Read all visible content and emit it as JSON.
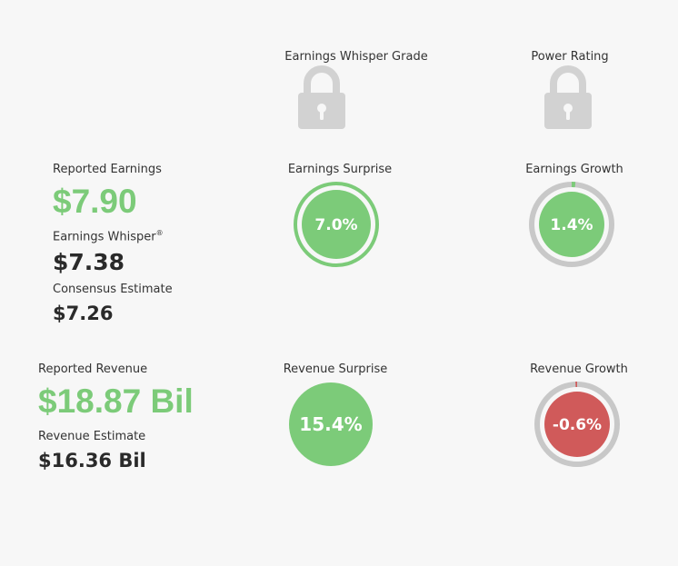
{
  "grades": {
    "whisper_grade_label": "Earnings Whisper Grade",
    "power_rating_label": "Power Rating",
    "lock_icon": "lock-icon"
  },
  "earnings": {
    "reported_label": "Reported Earnings",
    "reported_value": "$7.90",
    "whisper_label": "Earnings Whisper",
    "whisper_reg": "®",
    "whisper_value": "$7.38",
    "consensus_label": "Consensus Estimate",
    "consensus_value": "$7.26",
    "surprise_label": "Earnings Surprise",
    "surprise_value": "7.0%",
    "growth_label": "Earnings Growth",
    "growth_value": "1.4%"
  },
  "revenue": {
    "reported_label": "Reported Revenue",
    "reported_value": "$18.87 Bil",
    "estimate_label": "Revenue Estimate",
    "estimate_value": "$16.36 Bil",
    "surprise_label": "Revenue Surprise",
    "surprise_value": "15.4%",
    "growth_label": "Revenue Growth",
    "growth_value": "-0.6%"
  },
  "colors": {
    "positive": "#7ccb79",
    "negative": "#d05a5a",
    "track": "#c8c8c8",
    "lock": "#d2d2d2"
  }
}
